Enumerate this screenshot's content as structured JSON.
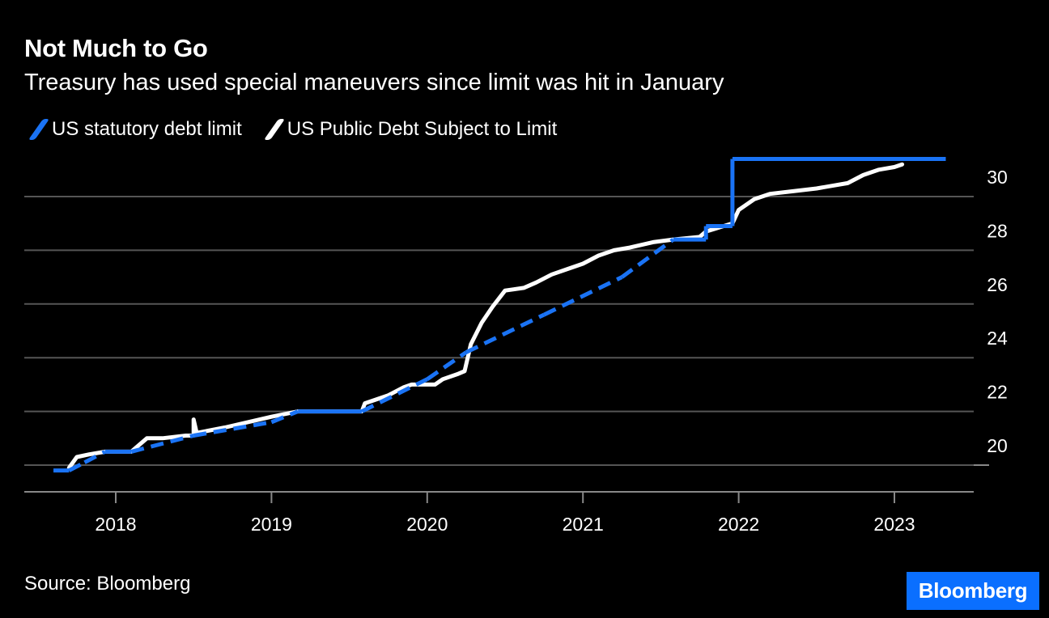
{
  "header": {
    "title": "Not Much to Go",
    "subtitle": "Treasury has used special maneuvers since limit was hit in January"
  },
  "legend": {
    "items": [
      {
        "label": "US statutory debt limit",
        "color": "#1a73f5",
        "style": "dashed"
      },
      {
        "label": "US Public Debt Subject to Limit",
        "color": "#ffffff",
        "style": "solid"
      }
    ]
  },
  "footer": {
    "source": "Source: Bloomberg",
    "brand": "Bloomberg",
    "brand_color": "#0a6fff"
  },
  "chart_data": {
    "type": "line",
    "title": "Not Much to Go",
    "subtitle": "Treasury has used special maneuvers since limit was hit in January",
    "xlabel": "",
    "ylabel": "",
    "xlim": [
      2017.6,
      2023.5
    ],
    "ylim": [
      19,
      31.5
    ],
    "x_ticks": [
      2018,
      2019,
      2020,
      2021,
      2022,
      2023
    ],
    "x_tick_labels": [
      "2018",
      "2019",
      "2020",
      "2021",
      "2022",
      "2023"
    ],
    "y_ticks": [
      20,
      22,
      24,
      26,
      28,
      30
    ],
    "y_tick_labels": [
      "20",
      "22",
      "24",
      "26",
      "28",
      "30"
    ],
    "grid": "horizontal",
    "legend_position": "top-left",
    "y_axis_side": "right",
    "series": [
      {
        "name": "US statutory debt limit",
        "color": "#1a73f5",
        "x": [
          2017.6,
          2017.7,
          2017.8,
          2017.93,
          2018.1,
          2018.5,
          2019.0,
          2019.17,
          2019.58,
          2020.0,
          2020.25,
          2020.75,
          2021.25,
          2021.58,
          2021.79,
          2021.79,
          2021.96,
          2021.96,
          2023.33
        ],
        "y": [
          19.8,
          19.8,
          20.1,
          20.5,
          20.5,
          21.1,
          21.6,
          22.0,
          22.0,
          23.2,
          24.2,
          25.6,
          27.0,
          28.4,
          28.4,
          28.9,
          28.9,
          31.4,
          31.4
        ],
        "dashed_segments": [
          [
            0.3,
            1.0
          ]
        ],
        "dash_until_x": 2021.58
      },
      {
        "name": "US Public Debt Subject to Limit",
        "color": "#ffffff",
        "x": [
          2017.7,
          2017.75,
          2017.83,
          2017.93,
          2018.1,
          2018.2,
          2018.3,
          2018.45,
          2018.5,
          2018.5,
          2018.52,
          2018.7,
          2019.0,
          2019.17,
          2019.58,
          2019.6,
          2019.75,
          2019.85,
          2019.9,
          2020.05,
          2020.1,
          2020.2,
          2020.24,
          2020.28,
          2020.35,
          2020.42,
          2020.5,
          2020.62,
          2020.7,
          2020.8,
          2020.9,
          2021.0,
          2021.1,
          2021.2,
          2021.3,
          2021.45,
          2021.58,
          2021.75,
          2021.79,
          2021.96,
          2022.0,
          2022.1,
          2022.2,
          2022.35,
          2022.5,
          2022.6,
          2022.7,
          2022.8,
          2022.9,
          2023.0,
          2023.05
        ],
        "y": [
          19.9,
          20.3,
          20.4,
          20.5,
          20.5,
          21.0,
          21.0,
          21.1,
          21.1,
          21.7,
          21.2,
          21.4,
          21.8,
          22.0,
          22.0,
          22.3,
          22.6,
          22.9,
          23.0,
          23.0,
          23.2,
          23.4,
          23.5,
          24.5,
          25.3,
          25.9,
          26.5,
          26.6,
          26.8,
          27.1,
          27.3,
          27.5,
          27.8,
          28.0,
          28.1,
          28.3,
          28.4,
          28.5,
          28.7,
          29.0,
          29.5,
          29.9,
          30.1,
          30.2,
          30.3,
          30.4,
          30.5,
          30.8,
          31.0,
          31.1,
          31.2
        ]
      }
    ]
  }
}
